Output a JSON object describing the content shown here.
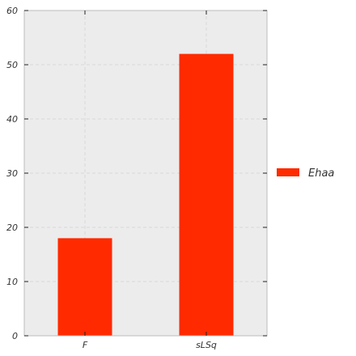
{
  "chart_data": {
    "type": "bar",
    "categories": [
      "F",
      "sLSq"
    ],
    "series": [
      {
        "name": "Ehaa",
        "values": [
          18,
          52
        ],
        "color": "#ff2a00"
      }
    ],
    "ylim": [
      0,
      60
    ],
    "yticks": [
      0,
      10,
      20,
      30,
      40,
      50,
      60
    ],
    "title": "",
    "xlabel": "",
    "ylabel": "",
    "grid": true,
    "legend": "right",
    "plot_background": "#ececec",
    "grid_color": "#d8d8d8"
  }
}
